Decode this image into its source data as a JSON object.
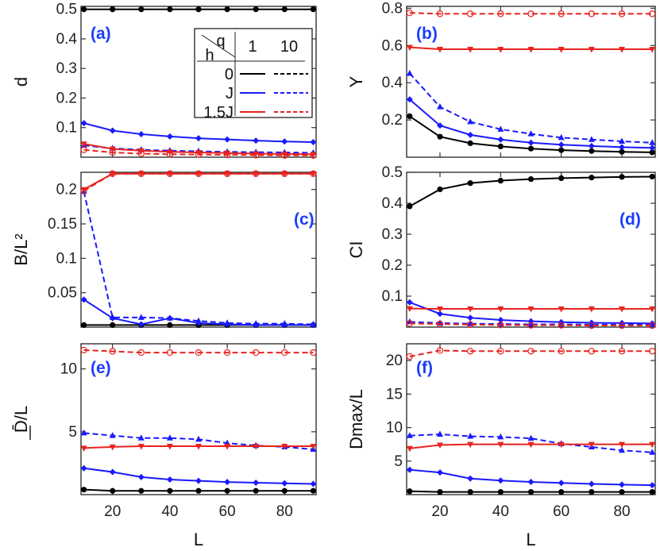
{
  "figure": {
    "xlabel": "L",
    "x_ticks": [
      "20",
      "40",
      "60",
      "80"
    ],
    "x_tick_values": [
      20,
      40,
      60,
      80
    ],
    "colors": {
      "black": "#000000",
      "blue": "#1a1aff",
      "red": "#e8231e",
      "label_blue": "#1a3cff"
    },
    "legend": {
      "h_header": "h",
      "q_header": "q",
      "q_values": [
        "1",
        "10"
      ],
      "rows": [
        "0",
        "J",
        "1.5J"
      ]
    }
  },
  "chart_data": [
    {
      "type": "line",
      "panel": "(a)",
      "ylabel": "d",
      "xlim": [
        9,
        91
      ],
      "ylim": [
        0.0,
        0.51
      ],
      "y_ticks": [
        0.1,
        0.2,
        0.3,
        0.4,
        0.5
      ],
      "y_tick_labels": [
        "0.1",
        "0.2",
        "0.3",
        "0.4",
        "0.5"
      ],
      "x": [
        10,
        20,
        30,
        40,
        50,
        60,
        70,
        80,
        90
      ],
      "series": [
        {
          "name": "h=0, q=1",
          "color": "black",
          "dashed": false,
          "marker": "circle",
          "values": [
            0.5,
            0.5,
            0.5,
            0.5,
            0.5,
            0.5,
            0.5,
            0.5,
            0.5
          ]
        },
        {
          "name": "h=J, q=1",
          "color": "blue",
          "dashed": false,
          "marker": "diamond",
          "values": [
            0.115,
            0.09,
            0.078,
            0.07,
            0.064,
            0.06,
            0.056,
            0.053,
            0.051
          ]
        },
        {
          "name": "h=J, q=10",
          "color": "blue",
          "dashed": true,
          "marker": "triangle",
          "values": [
            0.04,
            0.03,
            0.025,
            0.022,
            0.02,
            0.018,
            0.017,
            0.016,
            0.015
          ]
        },
        {
          "name": "h=1.5J, q=1",
          "color": "red",
          "dashed": false,
          "marker": "tri-down",
          "values": [
            0.045,
            0.028,
            0.022,
            0.018,
            0.016,
            0.014,
            0.012,
            0.011,
            0.01
          ]
        },
        {
          "name": "h=1.5J, q=10",
          "color": "red",
          "dashed": true,
          "marker": "ring",
          "values": [
            0.025,
            0.016,
            0.012,
            0.01,
            0.009,
            0.008,
            0.007,
            0.006,
            0.006
          ]
        }
      ]
    },
    {
      "type": "line",
      "panel": "(b)",
      "ylabel": "Y",
      "xlim": [
        9,
        91
      ],
      "ylim": [
        0.0,
        0.81
      ],
      "y_ticks": [
        0.2,
        0.4,
        0.6,
        0.8
      ],
      "y_tick_labels": [
        "0.2",
        "0.4",
        "0.6",
        "0.8"
      ],
      "x": [
        10,
        20,
        30,
        40,
        50,
        60,
        70,
        80,
        90
      ],
      "series": [
        {
          "name": "h=0, q=1",
          "color": "black",
          "dashed": false,
          "marker": "circle",
          "values": [
            0.22,
            0.11,
            0.075,
            0.058,
            0.046,
            0.038,
            0.033,
            0.029,
            0.026
          ]
        },
        {
          "name": "h=J, q=1",
          "color": "blue",
          "dashed": false,
          "marker": "diamond",
          "values": [
            0.31,
            0.17,
            0.12,
            0.095,
            0.078,
            0.067,
            0.06,
            0.054,
            0.05
          ]
        },
        {
          "name": "h=J, q=10",
          "color": "blue",
          "dashed": true,
          "marker": "triangle",
          "values": [
            0.45,
            0.27,
            0.19,
            0.15,
            0.125,
            0.105,
            0.095,
            0.085,
            0.078
          ]
        },
        {
          "name": "h=1.5J, q=1",
          "color": "red",
          "dashed": false,
          "marker": "tri-down",
          "values": [
            0.59,
            0.58,
            0.58,
            0.58,
            0.58,
            0.58,
            0.58,
            0.58,
            0.58
          ]
        },
        {
          "name": "h=1.5J, q=10",
          "color": "red",
          "dashed": true,
          "marker": "ring",
          "values": [
            0.775,
            0.77,
            0.77,
            0.77,
            0.77,
            0.77,
            0.77,
            0.77,
            0.77
          ]
        }
      ]
    },
    {
      "type": "line",
      "panel": "(c)",
      "ylabel": "B/L²",
      "xlim": [
        9,
        91
      ],
      "ylim": [
        0.0,
        0.225
      ],
      "y_ticks": [
        0.05,
        0.1,
        0.15,
        0.2
      ],
      "y_tick_labels": [
        "0.05",
        "0.1",
        "0.15",
        "0.2"
      ],
      "x": [
        10,
        20,
        30,
        40,
        50,
        60,
        70,
        80,
        90
      ],
      "series": [
        {
          "name": "h=0, q=1",
          "color": "black",
          "dashed": false,
          "marker": "circle",
          "values": [
            0.003,
            0.003,
            0.003,
            0.003,
            0.003,
            0.003,
            0.003,
            0.003,
            0.003
          ]
        },
        {
          "name": "h=J, q=1",
          "color": "blue",
          "dashed": false,
          "marker": "diamond",
          "values": [
            0.04,
            0.013,
            0.004,
            0.013,
            0.006,
            0.004,
            0.003,
            0.003,
            0.003
          ]
        },
        {
          "name": "h=J, q=10",
          "color": "blue",
          "dashed": true,
          "marker": "triangle",
          "values": [
            0.197,
            0.014,
            0.014,
            0.013,
            0.009,
            0.006,
            0.005,
            0.005,
            0.004
          ]
        },
        {
          "name": "h=1.5J, q=1",
          "color": "red",
          "dashed": false,
          "marker": "tri-down",
          "values": [
            0.2,
            0.223,
            0.223,
            0.223,
            0.223,
            0.223,
            0.223,
            0.223,
            0.223
          ]
        },
        {
          "name": "h=1.5J, q=10",
          "color": "red",
          "dashed": true,
          "marker": "ring",
          "values": [
            0.198,
            0.223,
            0.223,
            0.223,
            0.223,
            0.223,
            0.223,
            0.223,
            0.223
          ]
        }
      ]
    },
    {
      "type": "line",
      "panel": "(d)",
      "ylabel": "CI",
      "xlim": [
        9,
        91
      ],
      "ylim": [
        0.0,
        0.5
      ],
      "y_ticks": [
        0.1,
        0.2,
        0.3,
        0.4,
        0.5
      ],
      "y_tick_labels": [
        "0.1",
        "0.2",
        "0.3",
        "0.4",
        "0.5"
      ],
      "x": [
        10,
        20,
        30,
        40,
        50,
        60,
        70,
        80,
        90
      ],
      "series": [
        {
          "name": "h=0, q=1",
          "color": "black",
          "dashed": false,
          "marker": "circle",
          "values": [
            0.39,
            0.445,
            0.465,
            0.473,
            0.478,
            0.481,
            0.483,
            0.485,
            0.486
          ]
        },
        {
          "name": "h=J, q=1",
          "color": "blue",
          "dashed": false,
          "marker": "diamond",
          "values": [
            0.08,
            0.043,
            0.03,
            0.023,
            0.019,
            0.016,
            0.014,
            0.013,
            0.012
          ]
        },
        {
          "name": "h=J, q=10",
          "color": "blue",
          "dashed": true,
          "marker": "triangle",
          "values": [
            0.017,
            0.013,
            0.011,
            0.01,
            0.009,
            0.009,
            0.008,
            0.008,
            0.008
          ]
        },
        {
          "name": "h=1.5J, q=1",
          "color": "red",
          "dashed": false,
          "marker": "tri-down",
          "values": [
            0.06,
            0.059,
            0.059,
            0.059,
            0.059,
            0.059,
            0.059,
            0.059,
            0.059
          ]
        },
        {
          "name": "h=1.5J, q=10",
          "color": "red",
          "dashed": true,
          "marker": "ring",
          "values": [
            0.012,
            0.01,
            0.008,
            0.007,
            0.006,
            0.006,
            0.005,
            0.005,
            0.005
          ]
        }
      ]
    },
    {
      "type": "line",
      "panel": "(e)",
      "ylabel": "D̄/L",
      "xlim": [
        9,
        91
      ],
      "ylim": [
        0.0,
        12.0
      ],
      "y_ticks": [
        5,
        10
      ],
      "y_tick_labels": [
        "5",
        "10"
      ],
      "x": [
        10,
        20,
        30,
        40,
        50,
        60,
        70,
        80,
        90
      ],
      "series": [
        {
          "name": "h=0, q=1",
          "color": "black",
          "dashed": false,
          "marker": "circle",
          "values": [
            0.4,
            0.3,
            0.3,
            0.3,
            0.3,
            0.3,
            0.3,
            0.3,
            0.3
          ]
        },
        {
          "name": "h=J, q=1",
          "color": "blue",
          "dashed": false,
          "marker": "diamond",
          "values": [
            2.1,
            1.8,
            1.4,
            1.2,
            1.1,
            1.0,
            0.95,
            0.9,
            0.85
          ]
        },
        {
          "name": "h=J, q=10",
          "color": "blue",
          "dashed": true,
          "marker": "triangle",
          "values": [
            4.9,
            4.7,
            4.5,
            4.5,
            4.4,
            4.1,
            3.9,
            3.8,
            3.6
          ]
        },
        {
          "name": "h=1.5J, q=1",
          "color": "red",
          "dashed": false,
          "marker": "tri-down",
          "values": [
            3.7,
            3.8,
            3.85,
            3.85,
            3.85,
            3.85,
            3.85,
            3.85,
            3.85
          ]
        },
        {
          "name": "h=1.5J, q=10",
          "color": "red",
          "dashed": true,
          "marker": "ring",
          "values": [
            11.5,
            11.4,
            11.3,
            11.3,
            11.3,
            11.3,
            11.3,
            11.3,
            11.3
          ]
        }
      ]
    },
    {
      "type": "line",
      "panel": "(f)",
      "ylabel": "Dmax/L",
      "xlim": [
        9,
        91
      ],
      "ylim": [
        0.0,
        22.5
      ],
      "y_ticks": [
        5,
        10,
        15,
        20
      ],
      "y_tick_labels": [
        "5",
        "10",
        "15",
        "20"
      ],
      "x": [
        10,
        20,
        30,
        40,
        50,
        60,
        70,
        80,
        90
      ],
      "series": [
        {
          "name": "h=0, q=1",
          "color": "black",
          "dashed": false,
          "marker": "circle",
          "values": [
            0.5,
            0.4,
            0.4,
            0.4,
            0.4,
            0.4,
            0.4,
            0.4,
            0.4
          ]
        },
        {
          "name": "h=J, q=1",
          "color": "blue",
          "dashed": false,
          "marker": "diamond",
          "values": [
            3.7,
            3.3,
            2.4,
            2.1,
            1.9,
            1.75,
            1.6,
            1.5,
            1.4
          ]
        },
        {
          "name": "h=J, q=10",
          "color": "blue",
          "dashed": true,
          "marker": "triangle",
          "values": [
            8.8,
            9.0,
            8.7,
            8.6,
            8.4,
            7.6,
            7.1,
            6.6,
            6.3
          ]
        },
        {
          "name": "h=1.5J, q=1",
          "color": "red",
          "dashed": false,
          "marker": "tri-down",
          "values": [
            6.9,
            7.4,
            7.5,
            7.5,
            7.5,
            7.5,
            7.5,
            7.5,
            7.5
          ]
        },
        {
          "name": "h=1.5J, q=10",
          "color": "red",
          "dashed": true,
          "marker": "ring",
          "values": [
            20.6,
            21.5,
            21.4,
            21.4,
            21.4,
            21.4,
            21.4,
            21.4,
            21.4
          ]
        }
      ]
    }
  ]
}
